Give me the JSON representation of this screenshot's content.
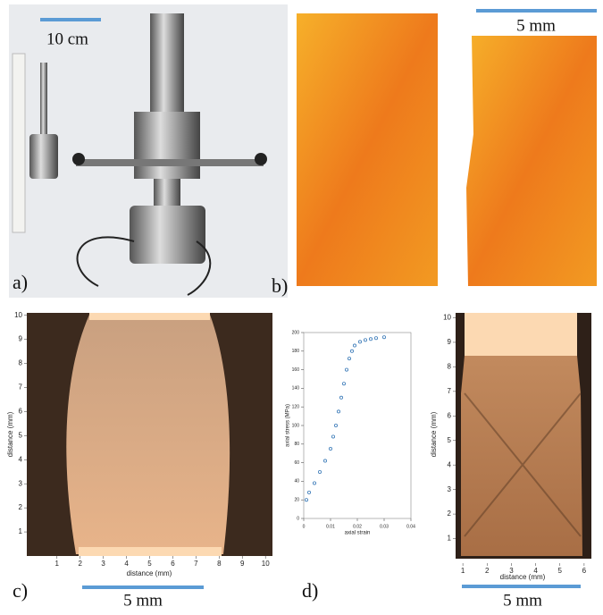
{
  "panel_a": {
    "label": "a)",
    "scale_bar": "10 cm"
  },
  "panel_b": {
    "label": "b)",
    "scale_bar": "5 mm"
  },
  "panel_c": {
    "label": "c)",
    "scale_bar": "5 mm",
    "xlabel": "distance (mm)",
    "ylabel": "distance (mm)",
    "xlim": [
      -0.3,
      10.3
    ],
    "ylim": [
      0,
      10.1
    ],
    "xticks": [
      1,
      2,
      3,
      4,
      5,
      6,
      7,
      8,
      9,
      10
    ],
    "yticks": [
      1,
      2,
      3,
      4,
      5,
      6,
      7,
      8,
      9,
      10
    ]
  },
  "panel_d": {
    "label": "d)",
    "scale_bar": "5 mm",
    "plot": {
      "xlabel": "axial strain",
      "ylabel": "axial stress (MPa)",
      "xlim": [
        0,
        0.04
      ],
      "ylim": [
        0,
        200
      ],
      "xticks": [
        0,
        0.01,
        0.02,
        0.03,
        0.04
      ],
      "yticks": [
        0,
        20,
        40,
        60,
        80,
        100,
        120,
        140,
        160,
        180,
        200
      ],
      "color": "#3a7ab8",
      "x": [
        0.001,
        0.002,
        0.004,
        0.006,
        0.008,
        0.01,
        0.011,
        0.012,
        0.013,
        0.014,
        0.015,
        0.016,
        0.017,
        0.018,
        0.019,
        0.021,
        0.023,
        0.025,
        0.027,
        0.03
      ],
      "y": [
        20,
        28,
        38,
        50,
        62,
        75,
        88,
        100,
        115,
        130,
        145,
        160,
        172,
        180,
        186,
        190,
        192,
        193,
        194,
        195
      ]
    },
    "image": {
      "xlabel": "distance (mm)",
      "ylabel": "distance (mm)",
      "xlim": [
        0.7,
        6.3
      ],
      "ylim": [
        0,
        10.2
      ],
      "xticks": [
        1,
        2,
        3,
        4,
        5,
        6
      ],
      "yticks": [
        1,
        2,
        3,
        4,
        5,
        6,
        7,
        8,
        9,
        10
      ]
    }
  }
}
